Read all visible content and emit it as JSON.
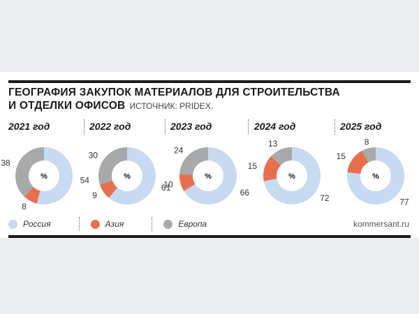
{
  "title_line1": "ГЕОГРАФИЯ ЗАКУПОК МАТЕРИАЛОВ ДЛЯ СТРОИТЕЛЬСТВА",
  "title_line2": "И ОТДЕЛКИ ОФИСОВ",
  "source": "ИСТОЧНИК: PRIDEX.",
  "brand": "kommersant.ru",
  "center_label": "%",
  "colors": {
    "Россия": "#c8d9f2",
    "Азия": "#e86f4e",
    "Европа": "#a8a9ab"
  },
  "chart_data": {
    "type": "pie",
    "title": "ГЕОГРАФИЯ ЗАКУПОК МАТЕРИАЛОВ ДЛЯ СТРОИТЕЛЬСТВА И ОТДЕЛКИ ОФИСОВ",
    "unit": "%",
    "series_names": [
      "Россия",
      "Азия",
      "Европа"
    ],
    "legend": [
      "Россия",
      "Азия",
      "Европа"
    ],
    "legend_position": "bottom-left",
    "charts": [
      {
        "label": "2021 год",
        "values": [
          54,
          8,
          38
        ]
      },
      {
        "label": "2022 год",
        "values": [
          61,
          9,
          30
        ]
      },
      {
        "label": "2023 год",
        "values": [
          66,
          10,
          24
        ]
      },
      {
        "label": "2024 год",
        "values": [
          72,
          15,
          13
        ]
      },
      {
        "label": "2025 год",
        "values": [
          77,
          15,
          8
        ]
      }
    ]
  }
}
